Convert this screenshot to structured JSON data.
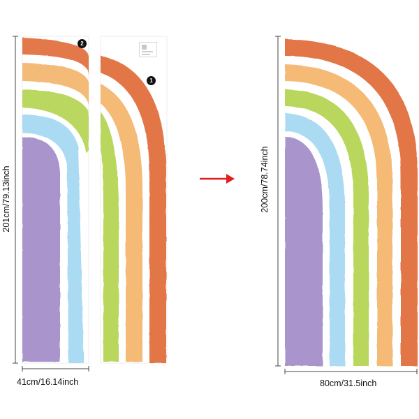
{
  "left_panel": {
    "height_label": "201cm/79.13inch",
    "width_label": "41cm/16.14inch",
    "piece_2_badge": "2",
    "piece_1_badge": "1"
  },
  "right_panel": {
    "height_label": "200cm/78.74inch",
    "width_label": "80cm/31.5inch"
  },
  "colors": {
    "red_orange": "#e06a38",
    "orange": "#f3b46a",
    "green": "#b2d44f",
    "blue": "#a6d8f2",
    "purple": "#a48fc9",
    "arrow": "#e02020"
  },
  "arrow_icon": "arrow-right-icon"
}
